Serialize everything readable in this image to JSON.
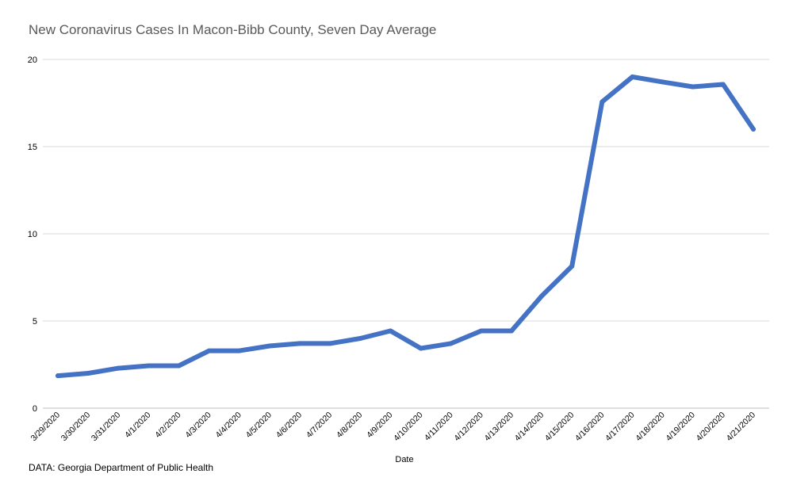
{
  "title": "New Coronavirus Cases In Macon-Bibb County, Seven Day Average",
  "source": "DATA: Georgia Department of Public Health",
  "colors": {
    "line": "#4472c4",
    "grid": "#d9d9d9"
  },
  "chart_data": {
    "type": "line",
    "title": "New Coronavirus Cases In Macon-Bibb County, Seven Day Average",
    "xlabel": "Date",
    "ylabel": "",
    "ylim": [
      0,
      20
    ],
    "yticks": [
      0,
      5,
      10,
      15,
      20
    ],
    "grid": true,
    "categories": [
      "3/29/2020",
      "3/30/2020",
      "3/31/2020",
      "4/1/2020",
      "4/2/2020",
      "4/3/2020",
      "4/4/2020",
      "4/5/2020",
      "4/6/2020",
      "4/7/2020",
      "4/8/2020",
      "4/9/2020",
      "4/10/2020",
      "4/11/2020",
      "4/12/2020",
      "4/13/2020",
      "4/14/2020",
      "4/15/2020",
      "4/16/2020",
      "4/17/2020",
      "4/18/2020",
      "4/19/2020",
      "4/20/2020",
      "4/21/2020"
    ],
    "series": [
      {
        "values": [
          1.86,
          2.0,
          2.29,
          2.43,
          2.43,
          3.29,
          3.29,
          3.57,
          3.71,
          3.71,
          4.0,
          4.43,
          3.43,
          3.71,
          4.43,
          4.43,
          6.43,
          8.14,
          17.57,
          19.0,
          18.71,
          18.43,
          18.57,
          16.0
        ]
      }
    ]
  }
}
